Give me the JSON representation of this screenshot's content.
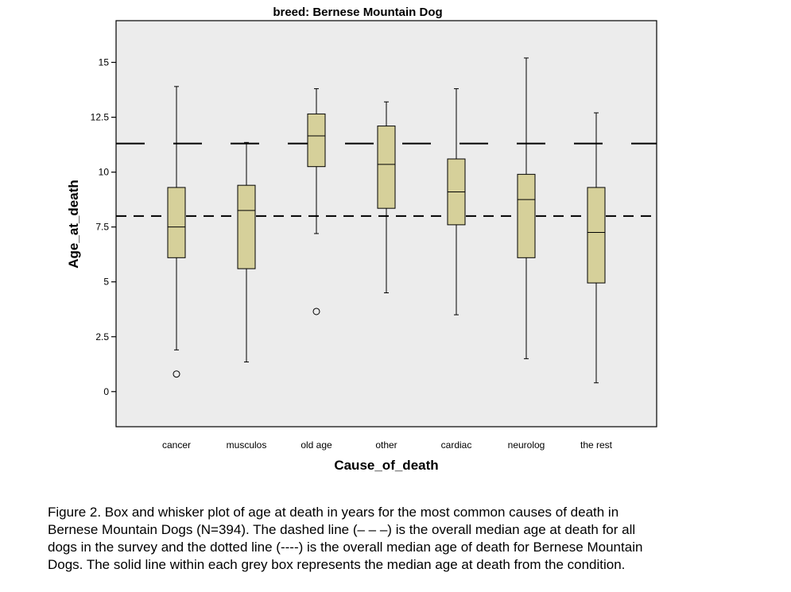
{
  "chart_data": {
    "type": "box",
    "title": "breed: Bernese Mountain Dog",
    "xlabel": "Cause_of_death",
    "ylabel": "Age_at_death",
    "ylim": [
      -1.6,
      16.9
    ],
    "yticks": [
      0,
      2.5,
      5,
      7.5,
      10,
      12.5,
      15
    ],
    "ytick_labels": [
      "0",
      "2.5",
      "5",
      "7.5",
      "10",
      "12.5",
      "15"
    ],
    "grid": false,
    "box_color": "#d6d09a",
    "plot_bg": "#ececec",
    "categories": [
      "cancer",
      "musculos",
      "old age",
      "other",
      "cardiac",
      "neurolog",
      "the rest"
    ],
    "boxes": [
      {
        "min": 1.9,
        "q1": 6.1,
        "median": 7.5,
        "q3": 9.3,
        "max": 13.9,
        "outliers": [
          0.8
        ]
      },
      {
        "min": 1.35,
        "q1": 5.6,
        "median": 8.25,
        "q3": 9.4,
        "max": 11.35,
        "outliers": []
      },
      {
        "min": 7.2,
        "q1": 10.25,
        "median": 11.65,
        "q3": 12.65,
        "max": 13.8,
        "outliers": [
          3.65
        ]
      },
      {
        "min": 4.5,
        "q1": 8.35,
        "median": 10.35,
        "q3": 12.1,
        "max": 13.2,
        "outliers": []
      },
      {
        "min": 3.5,
        "q1": 7.6,
        "median": 9.1,
        "q3": 10.6,
        "max": 13.8,
        "outliers": []
      },
      {
        "min": 1.5,
        "q1": 6.1,
        "median": 8.75,
        "q3": 9.9,
        "max": 15.2,
        "outliers": []
      },
      {
        "min": 0.4,
        "q1": 4.95,
        "median": 7.25,
        "q3": 9.3,
        "max": 12.7,
        "outliers": []
      }
    ],
    "reference_lines": [
      {
        "style": "long-dash",
        "value": 11.3
      },
      {
        "style": "short-dash",
        "value": 8.0
      }
    ]
  },
  "caption": {
    "lines": [
      "Figure 2.  Box and whisker plot of age at death in years for the most common causes of death in",
      "Bernese Mountain Dogs (N=394).  The dashed line (– – –) is the overall median age at death for all",
      "dogs in the survey and the dotted line (----) is the overall median age of death for Bernese Mountain",
      "Dogs.  The solid line within each grey box represents the median age at death from the condition."
    ]
  }
}
